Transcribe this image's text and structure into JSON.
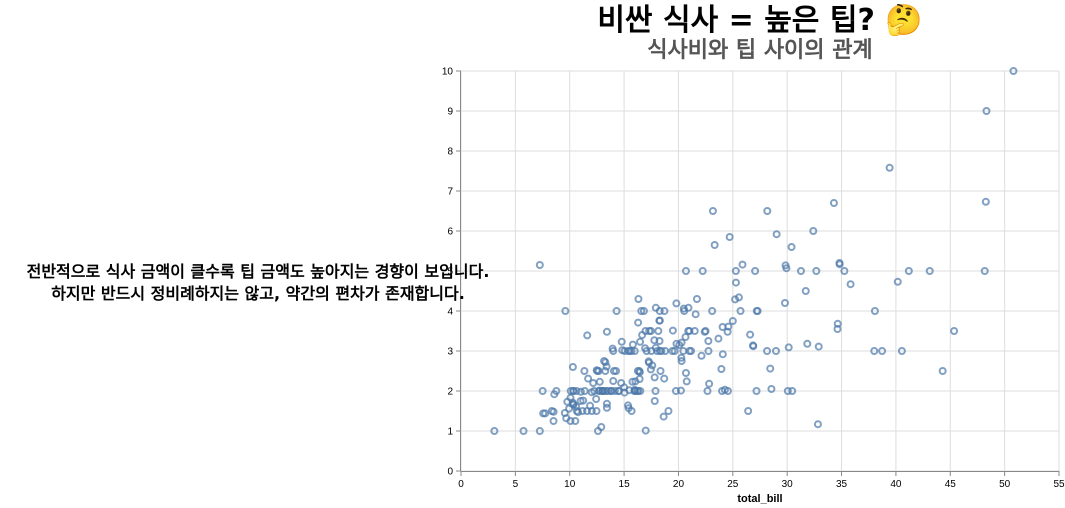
{
  "chart_data": {
    "type": "scatter",
    "title": "비싼 식사 = 높은 팁? 🤔",
    "subtitle": "식사비와 팁 사이의 관계",
    "xlabel": "total_bill",
    "ylabel": "",
    "xlim": [
      0,
      55
    ],
    "ylim": [
      0,
      10
    ],
    "x_ticks": [
      0,
      5,
      10,
      15,
      20,
      25,
      30,
      35,
      40,
      45,
      50,
      55
    ],
    "y_ticks": [
      0,
      1,
      2,
      3,
      4,
      5,
      6,
      7,
      8,
      9,
      10
    ],
    "grid": true,
    "marker": "hollow-circle",
    "point_color": "#4c78a8",
    "annotation": [
      "전반적으로 식사 금액이 클수록 팁 금액도 높아지는 경향이 보입니다.",
      "하지만 반드시 정비례하지는 않고, 약간의 편차가 존재합니다."
    ],
    "points": [
      [
        16.99,
        1.01
      ],
      [
        10.34,
        1.66
      ],
      [
        21.01,
        3.5
      ],
      [
        23.68,
        3.31
      ],
      [
        24.59,
        3.61
      ],
      [
        25.29,
        4.71
      ],
      [
        8.77,
        2.0
      ],
      [
        26.88,
        3.12
      ],
      [
        15.04,
        1.96
      ],
      [
        14.78,
        3.23
      ],
      [
        10.27,
        1.71
      ],
      [
        35.26,
        5.0
      ],
      [
        15.42,
        1.57
      ],
      [
        18.43,
        3.0
      ],
      [
        14.83,
        3.02
      ],
      [
        21.58,
        3.92
      ],
      [
        10.33,
        1.67
      ],
      [
        16.29,
        3.71
      ],
      [
        16.97,
        3.5
      ],
      [
        20.65,
        3.35
      ],
      [
        17.92,
        4.08
      ],
      [
        20.29,
        2.75
      ],
      [
        15.77,
        2.23
      ],
      [
        39.42,
        7.58
      ],
      [
        19.82,
        3.18
      ],
      [
        17.81,
        2.34
      ],
      [
        13.37,
        2.0
      ],
      [
        12.69,
        2.0
      ],
      [
        21.7,
        4.3
      ],
      [
        19.65,
        3.0
      ],
      [
        9.55,
        1.45
      ],
      [
        18.35,
        2.5
      ],
      [
        15.06,
        3.0
      ],
      [
        20.69,
        2.45
      ],
      [
        17.78,
        3.27
      ],
      [
        24.06,
        3.6
      ],
      [
        16.31,
        2.0
      ],
      [
        16.93,
        3.07
      ],
      [
        18.69,
        2.31
      ],
      [
        31.27,
        5.0
      ],
      [
        16.04,
        2.24
      ],
      [
        17.46,
        2.54
      ],
      [
        13.94,
        3.06
      ],
      [
        9.68,
        1.32
      ],
      [
        30.4,
        5.6
      ],
      [
        18.29,
        3.0
      ],
      [
        22.23,
        5.0
      ],
      [
        32.4,
        6.0
      ],
      [
        28.55,
        2.05
      ],
      [
        18.04,
        3.0
      ],
      [
        12.54,
        2.5
      ],
      [
        10.29,
        2.6
      ],
      [
        34.81,
        5.2
      ],
      [
        9.94,
        1.56
      ],
      [
        25.56,
        4.34
      ],
      [
        19.49,
        3.51
      ],
      [
        38.01,
        3.0
      ],
      [
        26.41,
        1.5
      ],
      [
        11.24,
        1.76
      ],
      [
        48.27,
        6.73
      ],
      [
        20.29,
        3.21
      ],
      [
        13.81,
        2.0
      ],
      [
        11.02,
        1.98
      ],
      [
        18.29,
        3.76
      ],
      [
        17.59,
        2.64
      ],
      [
        20.08,
        3.15
      ],
      [
        16.45,
        2.47
      ],
      [
        3.07,
        1.0
      ],
      [
        20.23,
        2.01
      ],
      [
        15.01,
        2.09
      ],
      [
        12.02,
        1.97
      ],
      [
        17.07,
        3.0
      ],
      [
        26.86,
        3.14
      ],
      [
        25.28,
        5.0
      ],
      [
        14.73,
        2.2
      ],
      [
        10.51,
        1.25
      ],
      [
        17.92,
        3.08
      ],
      [
        27.2,
        4.0
      ],
      [
        22.76,
        3.0
      ],
      [
        17.29,
        2.71
      ],
      [
        19.44,
        3.0
      ],
      [
        16.66,
        3.4
      ],
      [
        10.07,
        1.83
      ],
      [
        32.68,
        5.0
      ],
      [
        15.98,
        2.03
      ],
      [
        34.83,
        5.17
      ],
      [
        13.03,
        2.0
      ],
      [
        18.28,
        4.0
      ],
      [
        24.71,
        5.85
      ],
      [
        21.16,
        3.0
      ],
      [
        28.97,
        3.0
      ],
      [
        22.49,
        3.5
      ],
      [
        5.75,
        1.0
      ],
      [
        16.32,
        4.3
      ],
      [
        22.75,
        3.25
      ],
      [
        40.17,
        4.73
      ],
      [
        27.28,
        4.0
      ],
      [
        12.03,
        1.5
      ],
      [
        21.01,
        3.0
      ],
      [
        12.46,
        1.5
      ],
      [
        11.35,
        2.5
      ],
      [
        15.38,
        3.0
      ],
      [
        44.3,
        2.5
      ],
      [
        22.42,
        3.48
      ],
      [
        20.92,
        4.08
      ],
      [
        15.36,
        1.64
      ],
      [
        20.49,
        4.06
      ],
      [
        25.21,
        4.29
      ],
      [
        18.24,
        3.76
      ],
      [
        14.31,
        4.0
      ],
      [
        14.0,
        3.0
      ],
      [
        7.25,
        1.0
      ],
      [
        38.07,
        4.0
      ],
      [
        23.95,
        2.55
      ],
      [
        25.71,
        4.0
      ],
      [
        17.31,
        3.5
      ],
      [
        29.93,
        5.07
      ],
      [
        10.65,
        1.5
      ],
      [
        12.43,
        1.8
      ],
      [
        24.08,
        2.92
      ],
      [
        11.69,
        2.31
      ],
      [
        13.42,
        1.68
      ],
      [
        14.26,
        2.5
      ],
      [
        15.95,
        2.0
      ],
      [
        12.48,
        2.52
      ],
      [
        29.8,
        4.2
      ],
      [
        8.52,
        1.48
      ],
      [
        14.52,
        2.0
      ],
      [
        11.38,
        2.0
      ],
      [
        22.82,
        2.18
      ],
      [
        19.08,
        1.5
      ],
      [
        20.27,
        2.83
      ],
      [
        11.17,
        1.5
      ],
      [
        12.26,
        2.0
      ],
      [
        18.26,
        3.25
      ],
      [
        8.51,
        1.25
      ],
      [
        10.33,
        2.0
      ],
      [
        14.15,
        2.0
      ],
      [
        16.0,
        2.0
      ],
      [
        13.16,
        2.75
      ],
      [
        17.47,
        3.5
      ],
      [
        34.3,
        6.7
      ],
      [
        41.19,
        5.0
      ],
      [
        27.05,
        5.0
      ],
      [
        16.43,
        2.3
      ],
      [
        8.35,
        1.5
      ],
      [
        18.64,
        1.36
      ],
      [
        11.87,
        1.63
      ],
      [
        9.78,
        1.73
      ],
      [
        7.51,
        2.0
      ],
      [
        14.07,
        2.5
      ],
      [
        13.13,
        2.0
      ],
      [
        17.26,
        2.74
      ],
      [
        24.55,
        2.0
      ],
      [
        19.77,
        2.0
      ],
      [
        29.85,
        5.14
      ],
      [
        48.17,
        5.0
      ],
      [
        25.0,
        3.75
      ],
      [
        13.39,
        2.61
      ],
      [
        16.49,
        2.0
      ],
      [
        21.5,
        3.5
      ],
      [
        12.66,
        2.5
      ],
      [
        16.21,
        2.0
      ],
      [
        13.81,
        2.0
      ],
      [
        17.51,
        3.0
      ],
      [
        24.52,
        3.48
      ],
      [
        20.76,
        2.24
      ],
      [
        31.71,
        4.5
      ],
      [
        10.59,
        1.61
      ],
      [
        10.63,
        2.0
      ],
      [
        50.81,
        10.0
      ],
      [
        15.81,
        3.16
      ],
      [
        7.25,
        5.15
      ],
      [
        31.85,
        3.18
      ],
      [
        16.82,
        4.0
      ],
      [
        32.9,
        3.11
      ],
      [
        17.89,
        2.0
      ],
      [
        14.48,
        2.0
      ],
      [
        9.6,
        4.0
      ],
      [
        34.63,
        3.55
      ],
      [
        34.65,
        3.68
      ],
      [
        23.33,
        5.65
      ],
      [
        45.35,
        3.5
      ],
      [
        23.17,
        6.5
      ],
      [
        40.55,
        3.0
      ],
      [
        20.69,
        5.0
      ],
      [
        20.9,
        3.5
      ],
      [
        30.46,
        2.0
      ],
      [
        18.15,
        3.5
      ],
      [
        23.1,
        4.0
      ],
      [
        15.69,
        1.5
      ],
      [
        19.81,
        4.19
      ],
      [
        28.44,
        2.56
      ],
      [
        15.48,
        2.02
      ],
      [
        16.58,
        4.0
      ],
      [
        7.56,
        1.44
      ],
      [
        10.34,
        2.0
      ],
      [
        43.11,
        5.0
      ],
      [
        13.0,
        2.0
      ],
      [
        13.51,
        2.0
      ],
      [
        18.71,
        4.0
      ],
      [
        12.74,
        2.01
      ],
      [
        13.0,
        2.0
      ],
      [
        16.4,
        2.5
      ],
      [
        20.53,
        4.0
      ],
      [
        16.47,
        3.23
      ],
      [
        26.59,
        3.41
      ],
      [
        38.73,
        3.0
      ],
      [
        24.27,
        2.03
      ],
      [
        12.76,
        2.23
      ],
      [
        30.06,
        2.0
      ],
      [
        25.89,
        5.16
      ],
      [
        48.33,
        9.0
      ],
      [
        13.27,
        2.5
      ],
      [
        28.17,
        6.5
      ],
      [
        12.9,
        1.1
      ],
      [
        28.15,
        3.0
      ],
      [
        11.59,
        1.5
      ],
      [
        7.74,
        1.44
      ],
      [
        30.14,
        3.09
      ],
      [
        12.16,
        2.2
      ],
      [
        13.42,
        3.48
      ],
      [
        8.58,
        1.92
      ],
      [
        15.98,
        3.0
      ],
      [
        13.42,
        1.58
      ],
      [
        16.27,
        2.5
      ],
      [
        10.09,
        2.0
      ],
      [
        20.45,
        3.0
      ],
      [
        13.28,
        2.72
      ],
      [
        22.12,
        2.88
      ],
      [
        24.01,
        2.0
      ],
      [
        15.69,
        3.0
      ],
      [
        11.61,
        3.39
      ],
      [
        10.77,
        1.47
      ],
      [
        15.53,
        3.0
      ],
      [
        10.07,
        1.25
      ],
      [
        12.6,
        1.0
      ],
      [
        32.83,
        1.17
      ],
      [
        35.83,
        4.67
      ],
      [
        29.03,
        5.92
      ],
      [
        27.18,
        2.0
      ],
      [
        22.67,
        2.0
      ],
      [
        17.82,
        1.75
      ],
      [
        18.78,
        3.0
      ],
      [
        14.0,
        2.25
      ],
      [
        11.0,
        1.75
      ]
    ]
  }
}
